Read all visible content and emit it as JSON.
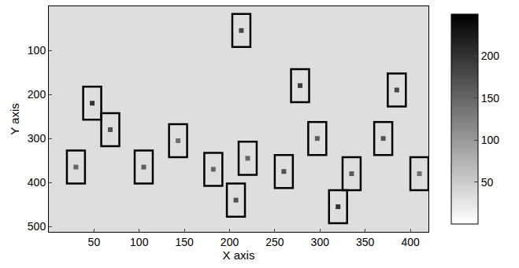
{
  "chart_data": {
    "type": "scatter",
    "x_label": "X axis",
    "y_label": "Y axis",
    "xlim": [
      0,
      420
    ],
    "ylim": [
      512,
      0
    ],
    "xticks": [
      50,
      100,
      150,
      200,
      250,
      300,
      350,
      400
    ],
    "yticks": [
      100,
      200,
      300,
      400,
      500
    ],
    "x": [
      30,
      48,
      68,
      105,
      143,
      182,
      207,
      220,
      213,
      260,
      278,
      297,
      320,
      335,
      370,
      385,
      410
    ],
    "y": [
      365,
      220,
      280,
      365,
      305,
      370,
      440,
      345,
      55,
      375,
      180,
      300,
      455,
      380,
      300,
      190,
      380
    ],
    "intensity": [
      150,
      200,
      170,
      160,
      140,
      150,
      170,
      150,
      180,
      170,
      190,
      160,
      200,
      160,
      170,
      180,
      140
    ],
    "box_width": 20,
    "box_height": 75,
    "colorbar_range": [
      0,
      250
    ],
    "colorbar_ticks": [
      50,
      100,
      150,
      200
    ],
    "marker": "square",
    "color": "#000000"
  }
}
